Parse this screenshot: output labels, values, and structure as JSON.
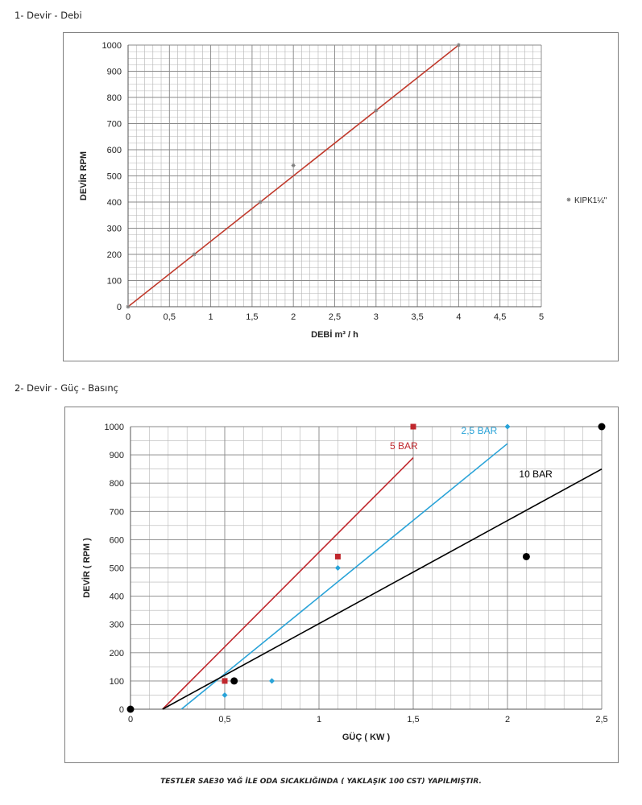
{
  "sections": {
    "chart1_title": "1- Devir - Debi",
    "chart2_title": "2- Devir - Güç - Basınç"
  },
  "footer": {
    "note": "TESTLER SAE30 YAĞ İLE ODA SICAKLIĞINDA ( YAKLAŞIK 100 CST) YAPILMIŞTIR."
  },
  "chart_data": [
    {
      "type": "scatter",
      "title": "",
      "xlabel": "DEBİ m³ / h",
      "ylabel": "DEVİR RPM",
      "xlim": [
        0,
        5
      ],
      "ylim": [
        0,
        1000
      ],
      "x_ticks": [
        "0",
        "0,5",
        "1",
        "1,5",
        "2",
        "2,5",
        "3",
        "3,5",
        "4",
        "4,5",
        "5"
      ],
      "y_ticks": [
        "0",
        "100",
        "200",
        "300",
        "400",
        "500",
        "600",
        "700",
        "800",
        "900",
        "1000"
      ],
      "grid": "minor",
      "legend": "right",
      "series": [
        {
          "name": "KIPK1¼\"",
          "marker": "asterisk",
          "color": "#7f7f7f",
          "x": [
            0,
            0.8,
            1.6,
            2.0,
            3.0,
            4.0
          ],
          "y": [
            0,
            200,
            400,
            540,
            750,
            1000
          ]
        }
      ],
      "trendlines": [
        {
          "color": "#c0392b",
          "x": [
            0,
            4
          ],
          "y": [
            0,
            1000
          ]
        }
      ]
    },
    {
      "type": "scatter",
      "title": "",
      "xlabel": "GÜÇ ( KW )",
      "ylabel": "DEVİR ( RPM )",
      "xlim": [
        0,
        2.5
      ],
      "ylim": [
        0,
        1000
      ],
      "x_ticks": [
        "0",
        "0,5",
        "1",
        "1,5",
        "2",
        "2,5"
      ],
      "y_ticks": [
        "0",
        "100",
        "200",
        "300",
        "400",
        "500",
        "600",
        "700",
        "800",
        "900",
        "1000"
      ],
      "grid": "minor",
      "legend": "none",
      "series": [
        {
          "label": "5 BAR",
          "marker": "square",
          "color": "#c0272d",
          "x": [
            0.5,
            1.1,
            1.5
          ],
          "y": [
            100,
            540,
            1000
          ],
          "trend": {
            "x": [
              0.17,
              1.5
            ],
            "y": [
              0,
              890
            ]
          }
        },
        {
          "label": "2,5 BAR",
          "marker": "diamond",
          "color": "#29a3d8",
          "x": [
            0.5,
            0.75,
            1.1,
            2.0
          ],
          "y": [
            50,
            100,
            500,
            1000
          ],
          "trend": {
            "x": [
              0.27,
              2.0
            ],
            "y": [
              0,
              940
            ]
          }
        },
        {
          "label": "10 BAR",
          "marker": "circle",
          "color": "#000000",
          "x": [
            0,
            0.55,
            2.1,
            2.5
          ],
          "y": [
            0,
            100,
            540,
            1000
          ],
          "trend": {
            "x": [
              0.17,
              2.5
            ],
            "y": [
              0,
              850
            ]
          }
        }
      ]
    }
  ]
}
